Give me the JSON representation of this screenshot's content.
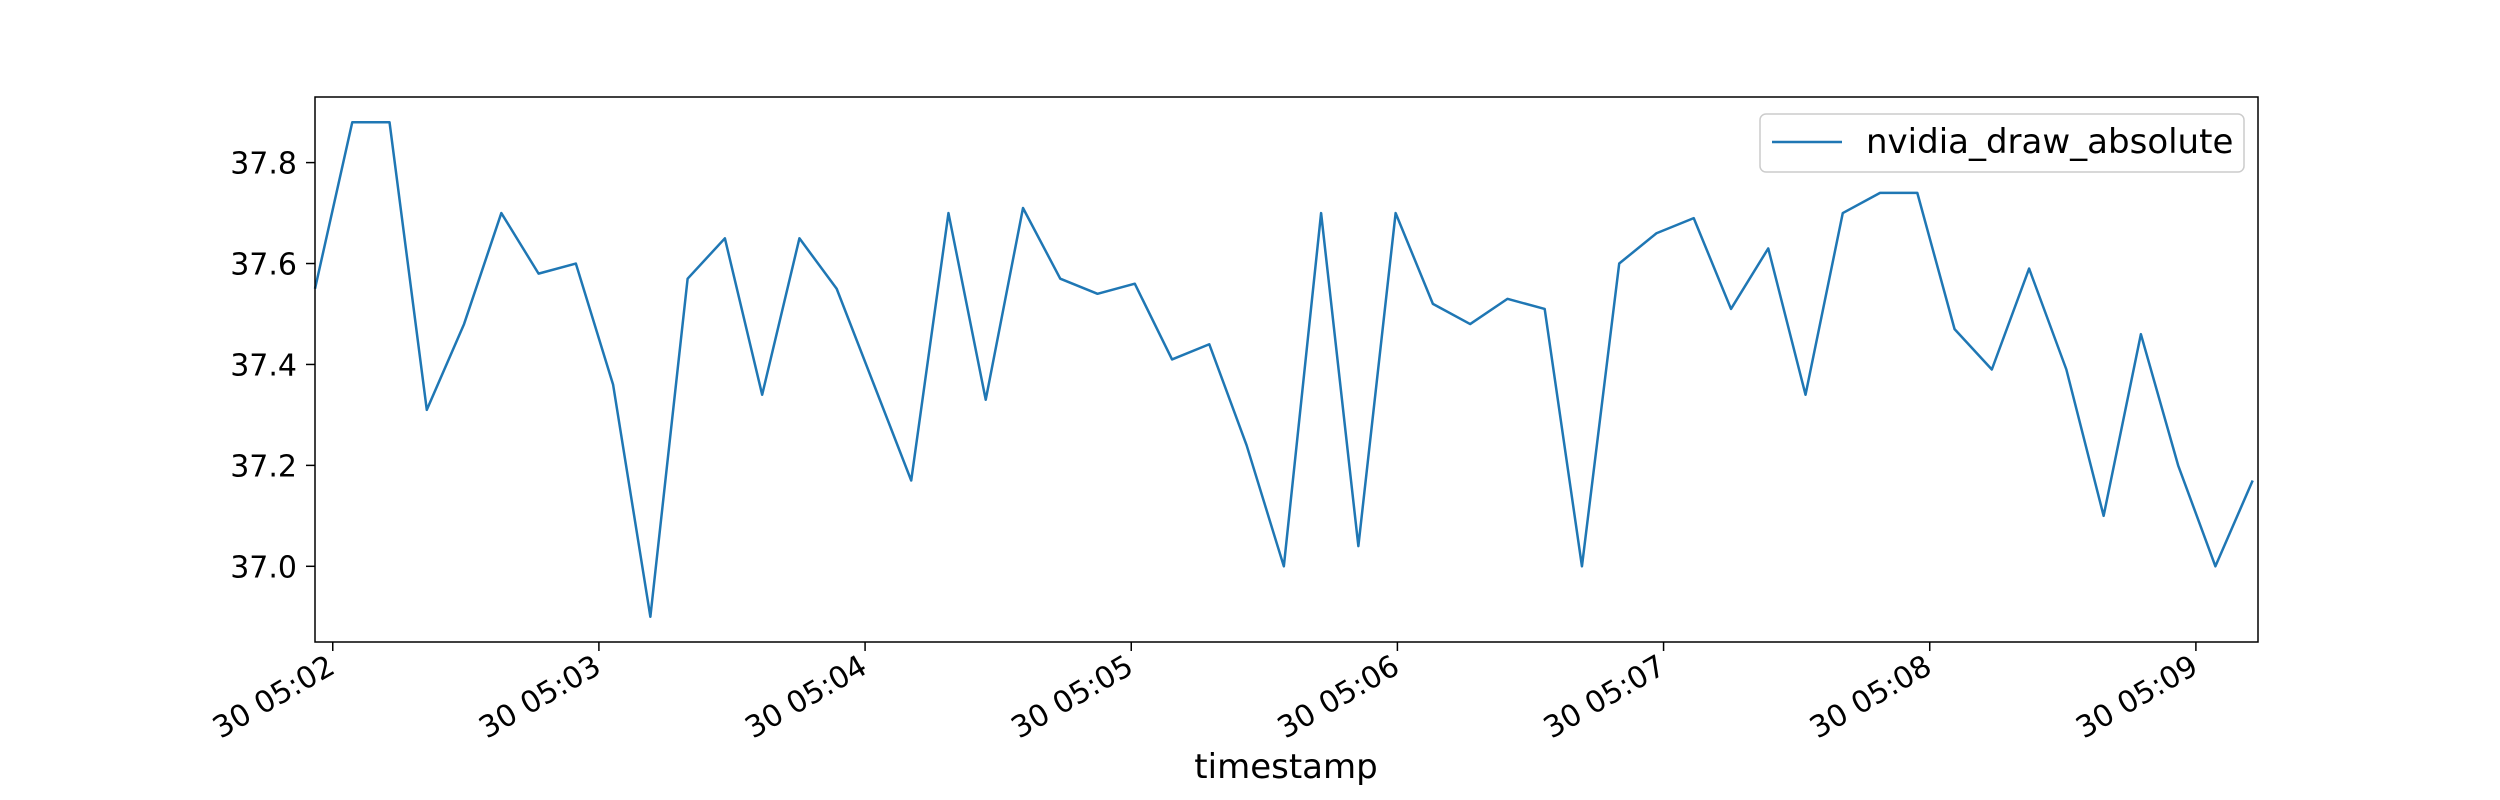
{
  "chart_data": {
    "type": "line",
    "title": "",
    "xlabel": "timestamp",
    "ylabel": "",
    "x_start": "2000-01-30T05:01:56",
    "x_step_seconds": 8.4,
    "xlim": [
      "2000-01-30T05:01:56",
      "2000-01-30T05:09:14"
    ],
    "ylim": [
      36.85,
      37.93
    ],
    "x_ticks": [
      "30 05:02",
      "30 05:03",
      "30 05:04",
      "30 05:05",
      "30 05:06",
      "30 05:07",
      "30 05:08",
      "30 05:09"
    ],
    "x_tick_values": [
      "2000-01-30T05:02:00",
      "2000-01-30T05:03:00",
      "2000-01-30T05:04:00",
      "2000-01-30T05:05:00",
      "2000-01-30T05:06:00",
      "2000-01-30T05:07:00",
      "2000-01-30T05:08:00",
      "2000-01-30T05:09:00"
    ],
    "y_ticks": [
      "37.0",
      "37.2",
      "37.4",
      "37.6",
      "37.8"
    ],
    "y_tick_values": [
      37.0,
      37.2,
      37.4,
      37.6,
      37.8
    ],
    "grid": false,
    "legend_position": "top-right",
    "series": [
      {
        "name": "nvidia_draw_absolute",
        "color": "#1f77b4",
        "values": [
          37.55,
          37.88,
          37.88,
          37.31,
          37.48,
          37.7,
          37.58,
          37.6,
          37.36,
          36.9,
          37.57,
          37.65,
          37.34,
          37.65,
          37.55,
          37.36,
          37.17,
          37.7,
          37.33,
          37.71,
          37.57,
          37.54,
          37.56,
          37.41,
          37.44,
          37.24,
          37.0,
          37.7,
          37.04,
          37.7,
          37.52,
          37.48,
          37.53,
          37.51,
          37.0,
          37.6,
          37.66,
          37.69,
          37.51,
          37.63,
          37.34,
          37.7,
          37.74,
          37.74,
          37.47,
          37.39,
          37.59,
          37.39,
          37.1,
          37.46,
          37.2,
          37.0,
          37.17
        ]
      }
    ]
  }
}
